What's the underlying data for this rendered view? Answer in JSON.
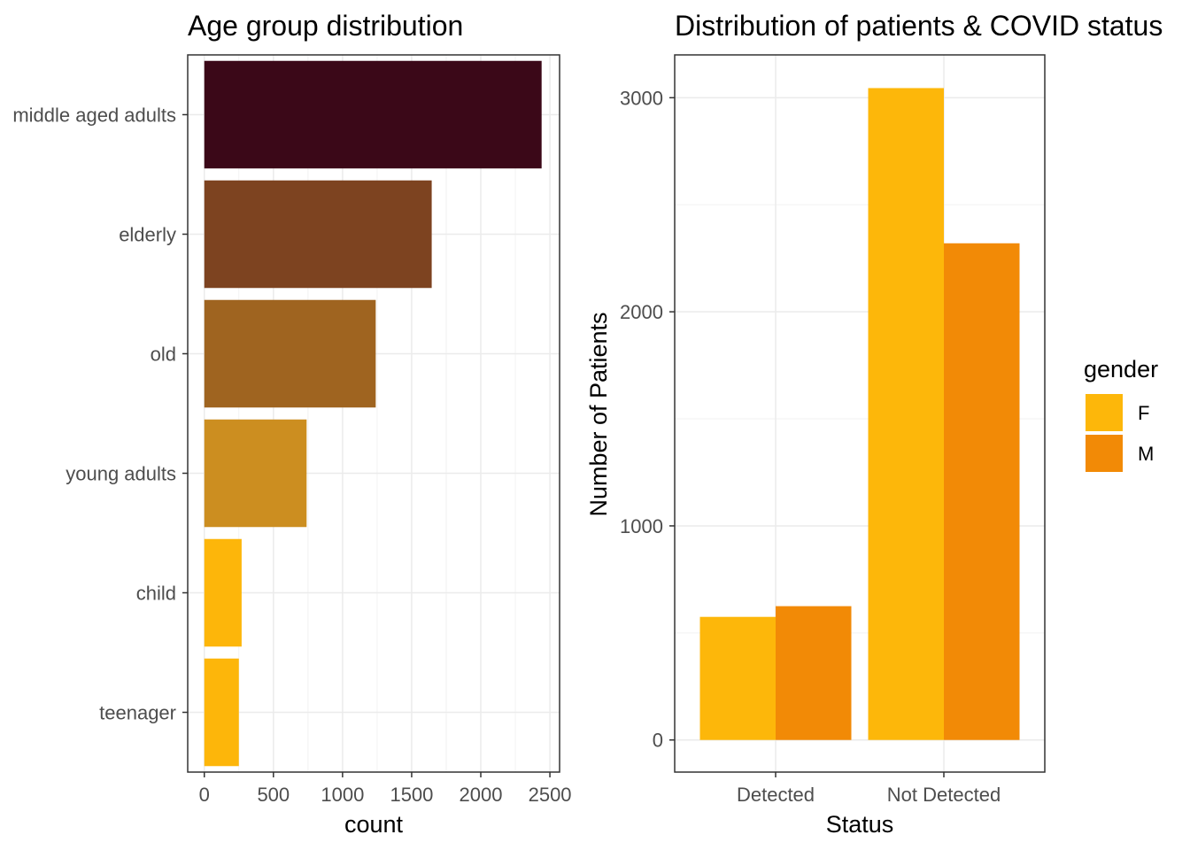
{
  "chart_data": [
    {
      "type": "bar",
      "orientation": "horizontal",
      "title": "Age group distribution",
      "xlabel": "count",
      "ylabel": "",
      "categories": [
        "middle aged adults",
        "elderly",
        "old",
        "young adults",
        "child",
        "teenager"
      ],
      "values": [
        2440,
        1645,
        1240,
        740,
        270,
        250
      ],
      "colors": [
        "#3b0818",
        "#7d4320",
        "#9f6420",
        "#cc8e20",
        "#fdb60a",
        "#fdb60a"
      ],
      "xlim": [
        0,
        2500
      ],
      "xticks": [
        0,
        500,
        1000,
        1500,
        2000,
        2500
      ],
      "grid": true
    },
    {
      "type": "bar",
      "orientation": "vertical",
      "title": "Distribution of patients & COVID status",
      "xlabel": "Status",
      "ylabel": "Number of Patients",
      "categories": [
        "Detected",
        "Not Detected"
      ],
      "series": [
        {
          "name": "F",
          "values": [
            575,
            3045
          ],
          "color": "#fdb70a"
        },
        {
          "name": "M",
          "values": [
            625,
            2320
          ],
          "color": "#f28a06"
        }
      ],
      "ylim": [
        0,
        3000
      ],
      "yticks": [
        0,
        1000,
        2000,
        3000
      ],
      "legend": {
        "title": "gender",
        "placement": "right"
      },
      "grid": true
    }
  ]
}
